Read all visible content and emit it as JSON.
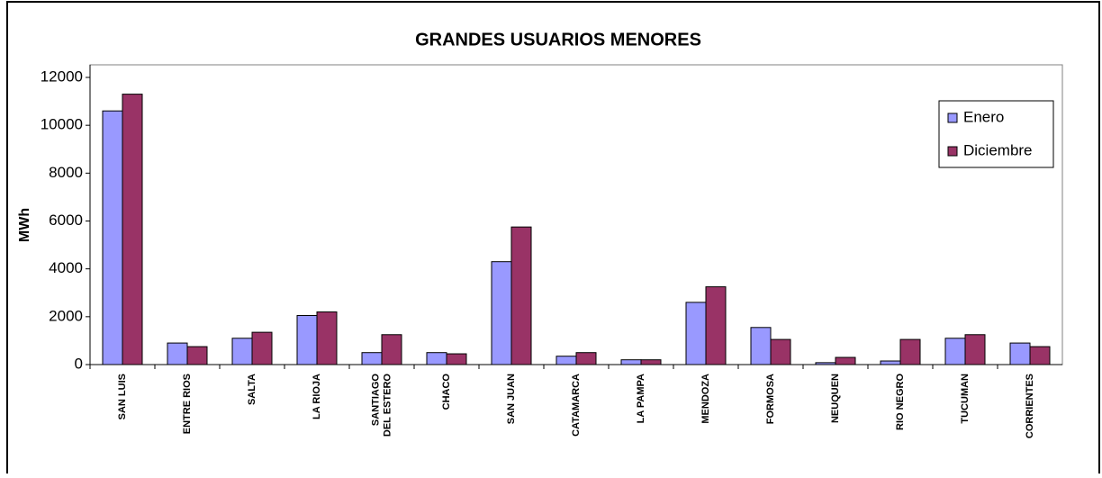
{
  "chart_data": {
    "type": "bar",
    "title": "GRANDES USUARIOS MENORES",
    "y_label": "MWh",
    "categories": [
      "SAN LUIS",
      "ENTRE RIOS",
      "SALTA",
      "LA RIOJA",
      "SANTIAGO DEL ESTERO",
      "CHACO",
      "SAN JUAN",
      "CATAMARCA",
      "LA PAMPA",
      "MENDOZA",
      "FORMOSA",
      "NEUQUEN",
      "RIO NEGRO",
      "TUCUMAN",
      "CORRIENTES"
    ],
    "series": [
      {
        "name": "Enero",
        "color": "#9999ff",
        "values": [
          10600,
          900,
          1100,
          2050,
          500,
          500,
          4300,
          350,
          200,
          2600,
          1550,
          80,
          150,
          1100,
          900
        ]
      },
      {
        "name": "Diciembre",
        "color": "#993366",
        "values": [
          11300,
          750,
          1350,
          2200,
          1250,
          450,
          5750,
          500,
          200,
          3250,
          1050,
          300,
          1050,
          1250,
          750
        ]
      }
    ],
    "ylim": [
      0,
      12000
    ],
    "yticks": [
      0,
      2000,
      4000,
      6000,
      8000,
      10000,
      12000
    ],
    "legend": "upper right"
  }
}
